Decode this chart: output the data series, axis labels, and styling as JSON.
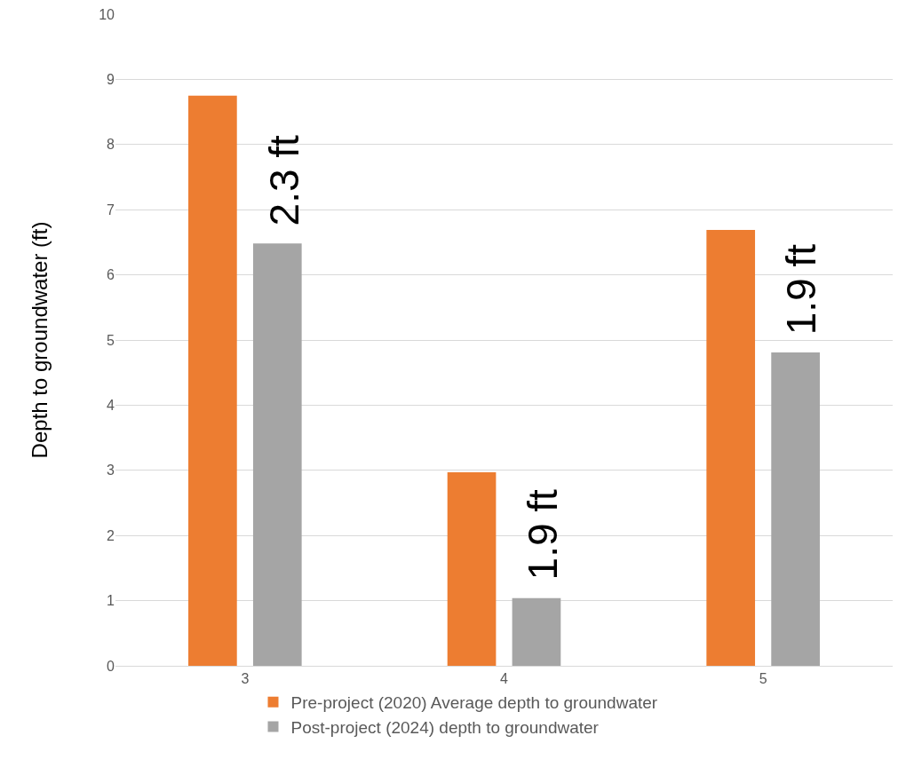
{
  "chart_data": {
    "type": "bar",
    "ylabel": "Depth to groundwater (ft)",
    "categories": [
      "3",
      "4",
      "5"
    ],
    "series": [
      {
        "name": "Pre-project (2020) Average depth to groundwater",
        "color": "#ed7d31",
        "values": [
          8.75,
          2.97,
          6.69
        ]
      },
      {
        "name": "Post-project (2024) depth to groundwater",
        "color": "#a5a5a5",
        "values": [
          6.48,
          1.04,
          4.81
        ]
      }
    ],
    "ylim": [
      0,
      10
    ],
    "yticks": [
      0,
      1,
      2,
      3,
      4,
      5,
      6,
      7,
      8,
      9,
      10
    ],
    "grid": "y",
    "legend": "bottom",
    "annotations": [
      "2.3 ft",
      "1.9 ft",
      "1.9 ft"
    ]
  }
}
